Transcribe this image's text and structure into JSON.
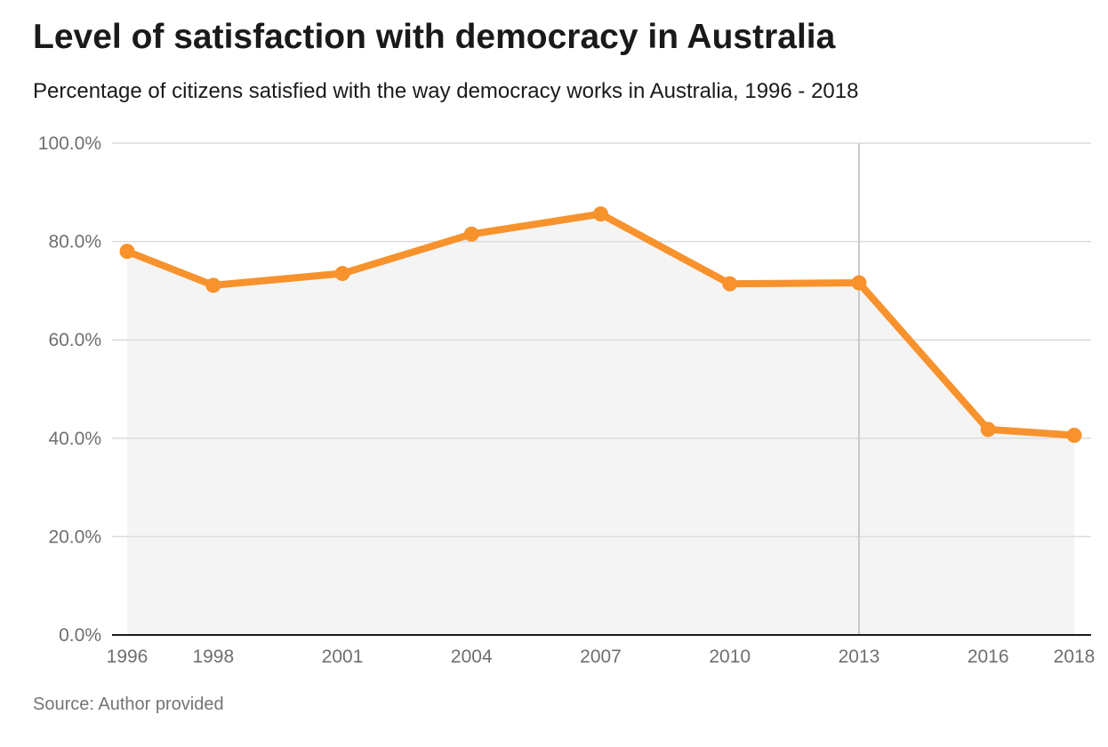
{
  "title": "Level of satisfaction with democracy in Australia",
  "subtitle": "Percentage of citizens satisfied with the way democracy works in Australia, 1996 - 2018",
  "source": "Source: Author provided",
  "colors": {
    "line": "#f7922d",
    "area": "#f4f4f4",
    "grid": "#dcdcdc",
    "axis": "#1a1a1a",
    "highlight_line": "#c8c8c8"
  },
  "chart_data": {
    "type": "line",
    "x": [
      1996,
      1998,
      2001,
      2004,
      2007,
      2010,
      2013,
      2016,
      2018
    ],
    "x_tick_labels": [
      "1996",
      "1998",
      "2001",
      "2004",
      "2007",
      "2010",
      "2013",
      "2016",
      "2018"
    ],
    "series": [
      {
        "values": [
          78.0,
          71.1,
          73.5,
          81.5,
          85.6,
          71.4,
          71.6,
          41.8,
          40.6
        ]
      }
    ],
    "ylim": [
      0,
      100
    ],
    "y_ticks": [
      0,
      20,
      40,
      60,
      80,
      100
    ],
    "y_tick_labels": [
      "0.0%",
      "20.0%",
      "40.0%",
      "60.0%",
      "80.0%",
      "100.0%"
    ],
    "highlight_x": 2013,
    "area_fill": true,
    "grid": true,
    "markers": true
  }
}
